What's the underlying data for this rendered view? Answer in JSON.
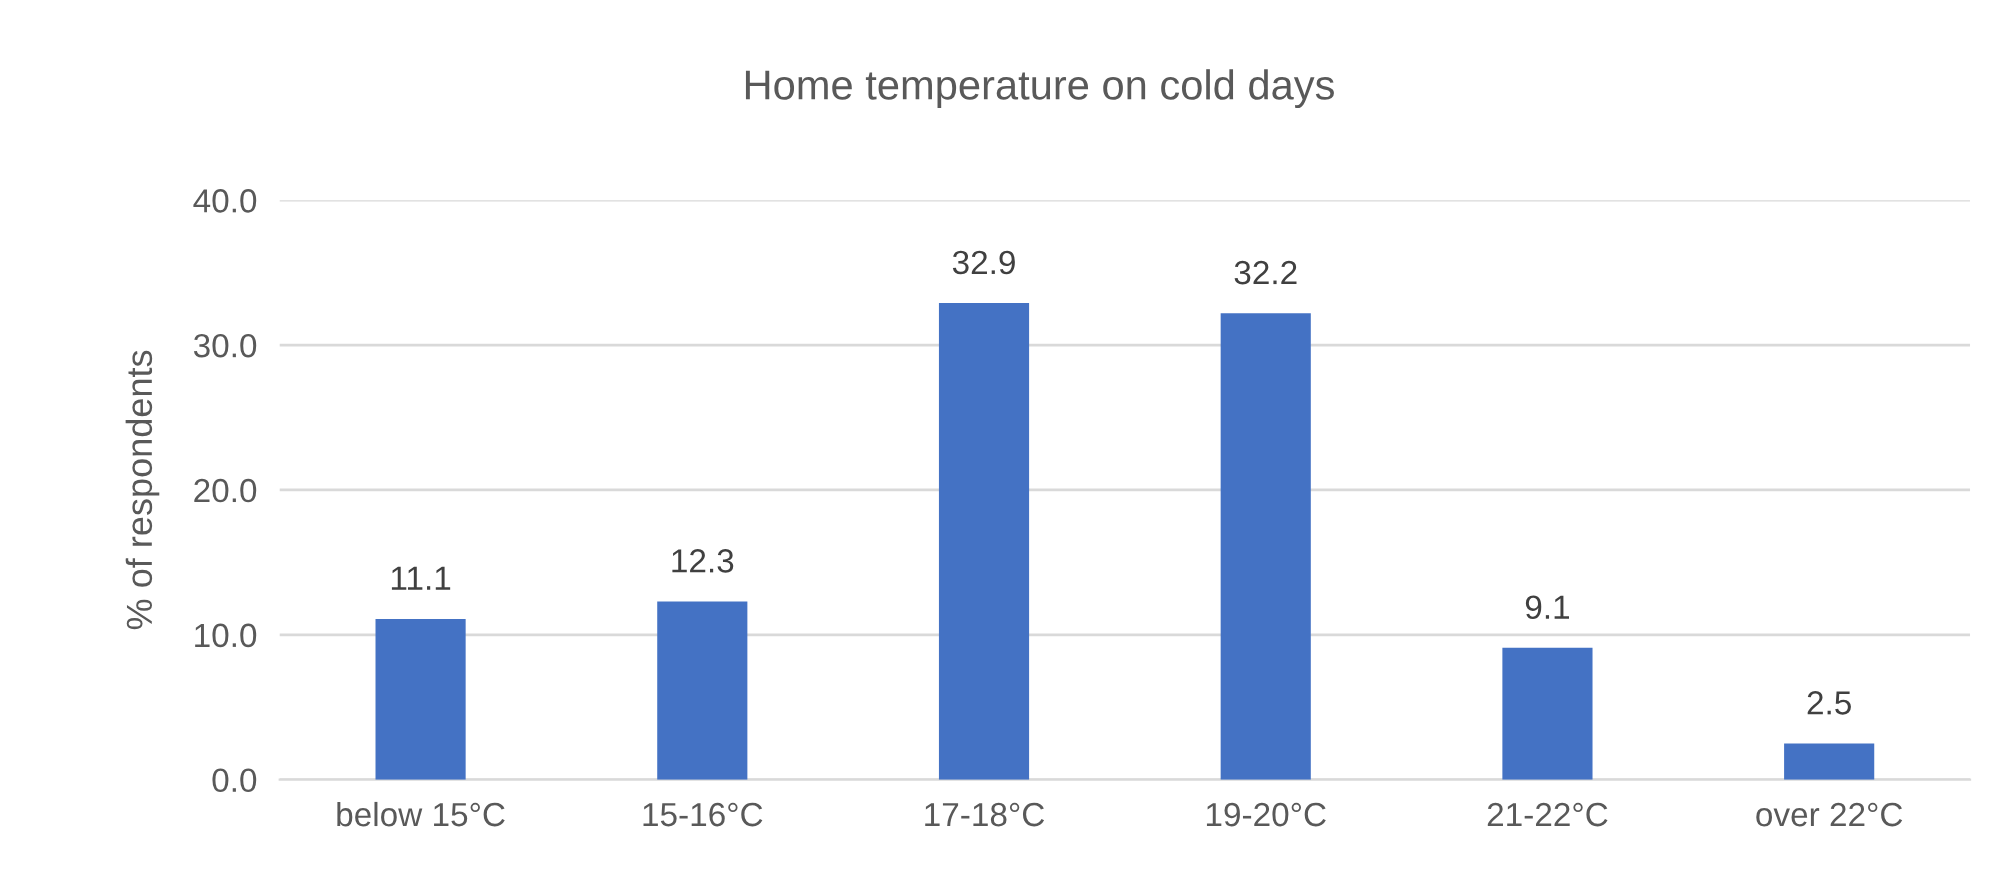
{
  "chart_data": {
    "type": "bar",
    "title": "Home temperature on cold days",
    "ylabel": "% of respondents",
    "categories": [
      "below 15°C",
      "15-16°C",
      "17-18°C",
      "19-20°C",
      "21-22°C",
      "over 22°C"
    ],
    "values": [
      11.1,
      12.3,
      32.9,
      32.2,
      9.1,
      2.5
    ],
    "color": "#4472c4",
    "ylim": [
      0,
      40
    ],
    "yticks": [
      {
        "value": 0,
        "label": "0.0"
      },
      {
        "value": 10,
        "label": "10.0"
      },
      {
        "value": 20,
        "label": "20.0"
      },
      {
        "value": 30,
        "label": "30.0"
      },
      {
        "value": 40,
        "label": "40.0"
      }
    ],
    "grid": "y",
    "data_labels": true
  }
}
